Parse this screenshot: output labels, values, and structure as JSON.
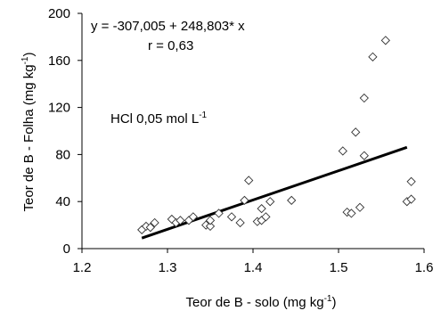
{
  "chart_data": {
    "type": "scatter",
    "xlabel": "Teor de B - solo (mg kg",
    "xlabel_sup": "-1",
    "xlabel_end": ")",
    "ylabel": "Teor de B - Folha (mg kg",
    "ylabel_sup": "-1",
    "ylabel_end": ")",
    "xlim": [
      1.2,
      1.6
    ],
    "ylim": [
      0,
      200
    ],
    "xticks": [
      "1.2",
      "1.3",
      "1.4",
      "1.5",
      "1.6"
    ],
    "yticks": [
      "0",
      "40",
      "80",
      "120",
      "160",
      "200"
    ],
    "xtick_values": [
      1.2,
      1.3,
      1.4,
      1.5,
      1.6
    ],
    "ytick_values": [
      0,
      40,
      80,
      120,
      160,
      200
    ],
    "annotations": {
      "equation": "y = -307,005 + 248,803* x",
      "r": "r = 0,63",
      "treatment": "HCl 0,05 mol L",
      "treatment_sup": "-1"
    },
    "trendline": {
      "intercept": -307.005,
      "slope": 248.803,
      "x_range": [
        1.27,
        1.58
      ]
    },
    "marker": "open-diamond",
    "grid": false,
    "points": [
      {
        "x": 1.27,
        "y": 16
      },
      {
        "x": 1.275,
        "y": 19
      },
      {
        "x": 1.28,
        "y": 18
      },
      {
        "x": 1.285,
        "y": 22
      },
      {
        "x": 1.305,
        "y": 25
      },
      {
        "x": 1.31,
        "y": 22
      },
      {
        "x": 1.315,
        "y": 24
      },
      {
        "x": 1.325,
        "y": 24
      },
      {
        "x": 1.33,
        "y": 27
      },
      {
        "x": 1.345,
        "y": 20
      },
      {
        "x": 1.35,
        "y": 19
      },
      {
        "x": 1.35,
        "y": 24
      },
      {
        "x": 1.36,
        "y": 30
      },
      {
        "x": 1.375,
        "y": 27
      },
      {
        "x": 1.385,
        "y": 22
      },
      {
        "x": 1.39,
        "y": 41
      },
      {
        "x": 1.395,
        "y": 58
      },
      {
        "x": 1.405,
        "y": 23
      },
      {
        "x": 1.41,
        "y": 24
      },
      {
        "x": 1.41,
        "y": 34
      },
      {
        "x": 1.415,
        "y": 27
      },
      {
        "x": 1.42,
        "y": 40
      },
      {
        "x": 1.445,
        "y": 41
      },
      {
        "x": 1.505,
        "y": 83
      },
      {
        "x": 1.51,
        "y": 31
      },
      {
        "x": 1.515,
        "y": 30
      },
      {
        "x": 1.52,
        "y": 99
      },
      {
        "x": 1.525,
        "y": 35
      },
      {
        "x": 1.53,
        "y": 79
      },
      {
        "x": 1.53,
        "y": 128
      },
      {
        "x": 1.54,
        "y": 163
      },
      {
        "x": 1.555,
        "y": 177
      },
      {
        "x": 1.58,
        "y": 40
      },
      {
        "x": 1.585,
        "y": 42
      },
      {
        "x": 1.585,
        "y": 57
      }
    ]
  }
}
